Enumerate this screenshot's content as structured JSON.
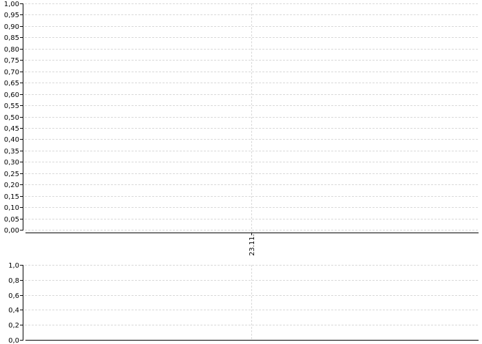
{
  "chart_data": [
    {
      "type": "line",
      "title": "",
      "xlabel": "",
      "ylabel": "",
      "x_ticks": [
        "23.11."
      ],
      "ylim": [
        0,
        1
      ],
      "y_ticks": [
        "0,00",
        "0,05",
        "0,10",
        "0,15",
        "0,20",
        "0,25",
        "0,30",
        "0,35",
        "0,40",
        "0,45",
        "0,50",
        "0,55",
        "0,60",
        "0,65",
        "0,70",
        "0,75",
        "0,80",
        "0,85",
        "0,90",
        "0,95",
        "1,00"
      ],
      "grid": true,
      "series": []
    },
    {
      "type": "line",
      "title": "",
      "xlabel": "",
      "ylabel": "",
      "ylim": [
        0,
        1
      ],
      "y_ticks": [
        "0,0",
        "0,2",
        "0,4",
        "0,6",
        "0,8",
        "1,0"
      ],
      "grid": true,
      "series": []
    }
  ]
}
